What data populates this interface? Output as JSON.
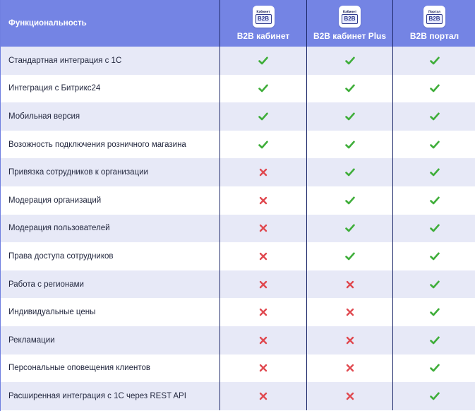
{
  "header": {
    "feature_label": "Функциональность",
    "plans": [
      {
        "name": "B2B кабинет",
        "logo_text": "Кабинет",
        "logo_mark": "B2B"
      },
      {
        "name": "B2B кабинет Plus",
        "logo_text": "Кабинет",
        "logo_mark": "B2B"
      },
      {
        "name": "B2B портал",
        "logo_text": "Портал",
        "logo_mark": "B2B"
      }
    ]
  },
  "colors": {
    "header_bg": "#7484e4",
    "row_alt_bg": "#e7e9f7",
    "check": "#3fae3a",
    "cross": "#e0484f"
  },
  "rows": [
    {
      "feature": "Стандартная интеграция с 1С",
      "support": [
        "check",
        "check",
        "check"
      ]
    },
    {
      "feature": "Интеграция с Битрикс24",
      "support": [
        "check",
        "check",
        "check"
      ]
    },
    {
      "feature": "Мобильная версия",
      "support": [
        "check",
        "check",
        "check"
      ]
    },
    {
      "feature": "Возожность подключения розничного магазина",
      "support": [
        "check",
        "check",
        "check"
      ]
    },
    {
      "feature": "Привязка сотрудников к организации",
      "support": [
        "cross",
        "check",
        "check"
      ]
    },
    {
      "feature": "Модерация организаций",
      "support": [
        "cross",
        "check",
        "check"
      ]
    },
    {
      "feature": "Модерация пользователей",
      "support": [
        "cross",
        "check",
        "check"
      ]
    },
    {
      "feature": "Права доступа сотрудников",
      "support": [
        "cross",
        "check",
        "check"
      ]
    },
    {
      "feature": "Работа с регионами",
      "support": [
        "cross",
        "cross",
        "check"
      ]
    },
    {
      "feature": "Индивидуальные цены",
      "support": [
        "cross",
        "cross",
        "check"
      ]
    },
    {
      "feature": "Рекламации",
      "support": [
        "cross",
        "cross",
        "check"
      ]
    },
    {
      "feature": "Персональные оповещения клиентов",
      "support": [
        "cross",
        "cross",
        "check"
      ]
    },
    {
      "feature": "Расширенная интеграция с 1С через REST API",
      "support": [
        "cross",
        "cross",
        "check"
      ]
    }
  ]
}
